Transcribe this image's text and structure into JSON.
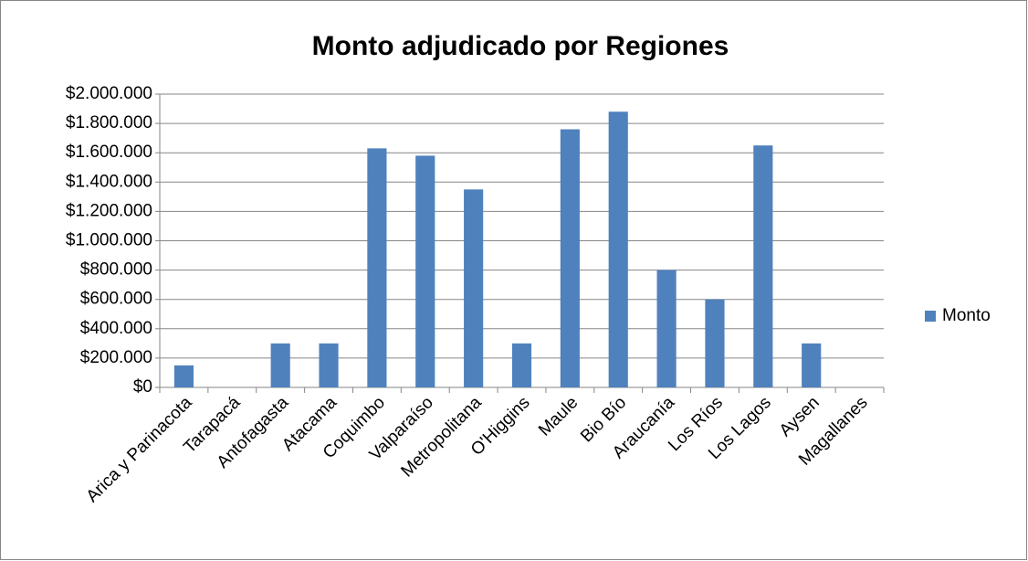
{
  "chart_data": {
    "type": "bar",
    "title": "Monto adjudicado por Regiones",
    "categories": [
      "Arica y Parinacota",
      "Tarapacá",
      "Antofagasta",
      "Atacama",
      "Coquimbo",
      "Valparaíso",
      "Metropolitana",
      "O'Higgins",
      "Maule",
      "Bio Bío",
      "Araucanía",
      "Los Ríos",
      "Los Lagos",
      "Aysen",
      "Magallanes"
    ],
    "series": [
      {
        "name": "Monto",
        "color": "#4f81bd",
        "values": [
          150000,
          0,
          300000,
          300000,
          1630000,
          1580000,
          1350000,
          300000,
          1760000,
          1880000,
          800000,
          600000,
          1650000,
          300000,
          0
        ]
      }
    ],
    "ylim": [
      0,
      2000000
    ],
    "yticks": [
      {
        "value": 0,
        "label": "$0"
      },
      {
        "value": 200000,
        "label": "$200.000"
      },
      {
        "value": 400000,
        "label": "$400.000"
      },
      {
        "value": 600000,
        "label": "$600.000"
      },
      {
        "value": 800000,
        "label": "$800.000"
      },
      {
        "value": 1000000,
        "label": "$1.000.000"
      },
      {
        "value": 1200000,
        "label": "$1.200.000"
      },
      {
        "value": 1400000,
        "label": "$1.400.000"
      },
      {
        "value": 1600000,
        "label": "$1.600.000"
      },
      {
        "value": 1800000,
        "label": "$1.800.000"
      },
      {
        "value": 2000000,
        "label": "$2.000.000"
      }
    ],
    "grid": true,
    "legend": "right"
  }
}
